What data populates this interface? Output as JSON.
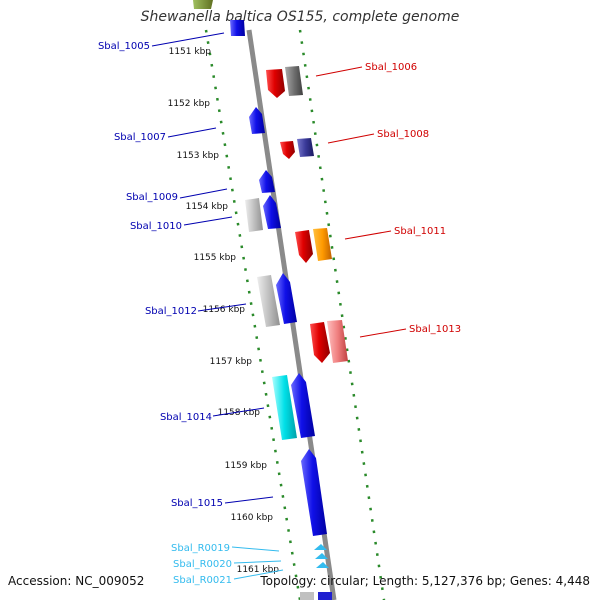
{
  "title": "Shewanella baltica OS155, complete genome",
  "accession": "Accession: NC_009052",
  "topology": "Topology: circular; Length: 5,127,376 bp; Genes: 4,448",
  "colors": {
    "backbone": "#8a8a8a",
    "tick": "#2a8a2a",
    "label_forward": "#0000b0",
    "label_reverse": "#d00000",
    "label_rna": "#33bbee"
  },
  "ticks": [
    {
      "label": "1151 kbp"
    },
    {
      "label": "1152 kbp"
    },
    {
      "label": "1153 kbp"
    },
    {
      "label": "1154 kbp"
    },
    {
      "label": "1155 kbp"
    },
    {
      "label": "1156 kbp"
    },
    {
      "label": "1157 kbp"
    },
    {
      "label": "1158 kbp"
    },
    {
      "label": "1159 kbp"
    },
    {
      "label": "1160 kbp"
    },
    {
      "label": "1161 kbp"
    }
  ],
  "labels_left": [
    {
      "text": "Sbal_1005",
      "kind": "forward"
    },
    {
      "text": "Sbal_1007",
      "kind": "forward"
    },
    {
      "text": "Sbal_1009",
      "kind": "forward"
    },
    {
      "text": "Sbal_1010",
      "kind": "forward"
    },
    {
      "text": "Sbal_1012",
      "kind": "forward"
    },
    {
      "text": "Sbal_1014",
      "kind": "forward"
    },
    {
      "text": "Sbal_1015",
      "kind": "forward"
    },
    {
      "text": "Sbal_R0019",
      "kind": "rna"
    },
    {
      "text": "Sbal_R0020",
      "kind": "rna"
    },
    {
      "text": "Sbal_R0021",
      "kind": "rna"
    }
  ],
  "labels_right": [
    {
      "text": "Sbal_1006",
      "kind": "reverse"
    },
    {
      "text": "Sbal_1008",
      "kind": "reverse"
    },
    {
      "text": "Sbal_1011",
      "kind": "reverse"
    },
    {
      "text": "Sbal_1013",
      "kind": "reverse"
    }
  ]
}
